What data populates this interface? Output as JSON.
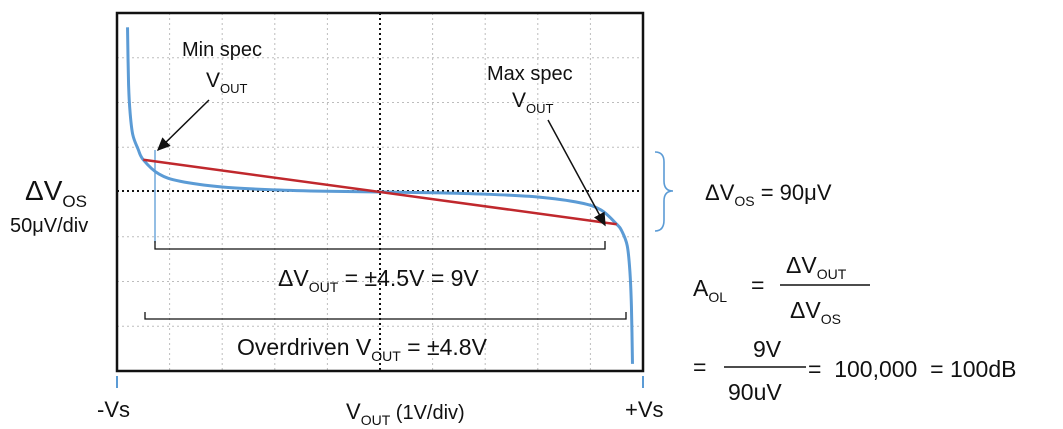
{
  "chart_data": {
    "type": "line",
    "title": "",
    "xlabel": {
      "main": "V",
      "sub": "OUT",
      "suffix": "  (1V/div)"
    },
    "ylabel": {
      "main": "ΔV",
      "sub": "OS",
      "scale": "50μV/div"
    },
    "x_range": [
      -5,
      5
    ],
    "y_range": [
      -250,
      250
    ],
    "x_end_labels": {
      "left": "-Vs",
      "right": "+Vs"
    },
    "grid": true,
    "series": [
      {
        "role": "transfer-curve",
        "color": "#5b9bd5",
        "points": [
          [
            -4.8,
            230
          ],
          [
            -4.78,
            150
          ],
          [
            -4.75,
            110
          ],
          [
            -4.7,
            80
          ],
          [
            -4.6,
            60
          ],
          [
            -4.5,
            45
          ],
          [
            -4.2,
            25
          ],
          [
            -3.8,
            15
          ],
          [
            -3.0,
            7
          ],
          [
            -2.0,
            3
          ],
          [
            -1.0,
            1
          ],
          [
            0,
            0
          ],
          [
            1.0,
            -1
          ],
          [
            2.0,
            -3
          ],
          [
            3.0,
            -7
          ],
          [
            3.8,
            -15
          ],
          [
            4.2,
            -25
          ],
          [
            4.5,
            -45
          ],
          [
            4.6,
            -55
          ],
          [
            4.7,
            -75
          ],
          [
            4.75,
            -110
          ],
          [
            4.78,
            -160
          ],
          [
            4.8,
            -240
          ]
        ]
      },
      {
        "role": "slope-line",
        "color": "#c0282d",
        "points": [
          [
            -4.5,
            45
          ],
          [
            4.5,
            -45
          ]
        ]
      }
    ],
    "annotations": {
      "min_spec": {
        "line1": "Min spec",
        "main": "V",
        "sub": "OUT"
      },
      "max_spec": {
        "line1": "Max spec",
        "main": "V",
        "sub": "OUT"
      },
      "delta_vout": {
        "main": "ΔV",
        "sub": "OUT",
        "rest": " = ±4.5V = 9V"
      },
      "overdriven": {
        "pre": "Overdriven V",
        "sub": "OUT",
        "rest": " = ±4.8V"
      },
      "delta_vos": {
        "main": "ΔV",
        "sub": "OS",
        "rest": " = 90μV"
      }
    },
    "equation": {
      "lhs_main": "A",
      "lhs_sub": "OL",
      "equals": "=",
      "num_main": "ΔV",
      "num_sub": "OUT",
      "den_main": "ΔV",
      "den_sub": "OS",
      "line2_equals": "=",
      "num2": "9V",
      "den2": "90uV",
      "result": "=  100,000  = 100dB"
    }
  }
}
